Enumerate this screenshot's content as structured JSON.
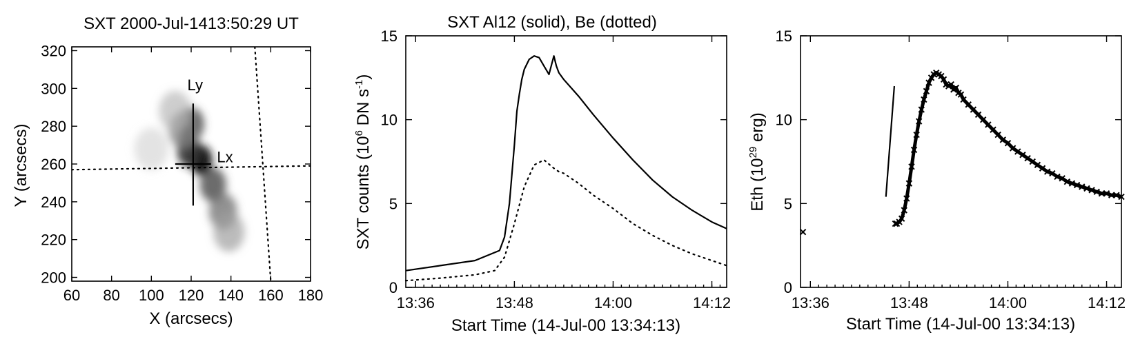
{
  "chart_data": [
    {
      "type": "heatmap",
      "title": "SXT 2000-Jul-1413:50:29 UT",
      "xlabel": "X (arcsecs)",
      "ylabel": "Y (arcsecs)",
      "xlim": [
        60,
        180
      ],
      "ylim": [
        198,
        322
      ],
      "xticks": [
        "60",
        "80",
        "100",
        "120",
        "140",
        "160",
        "180"
      ],
      "yticks": [
        "200",
        "220",
        "240",
        "260",
        "280",
        "300",
        "320"
      ],
      "grid": false,
      "annotations": [
        {
          "text": "Ly",
          "x": 122,
          "y": 299
        },
        {
          "text": "Lx",
          "x": 137,
          "y": 261
        }
      ],
      "cuts": {
        "Lx_horizontal": {
          "x": [
            60,
            180
          ],
          "y": [
            257,
            259
          ]
        },
        "Ly_vertical": {
          "x": [
            121,
            121
          ],
          "y": [
            238,
            292
          ]
        },
        "center_cross": {
          "x": [
            112,
            130
          ],
          "y": [
            260,
            260
          ]
        },
        "dotted_diagonal": {
          "x": [
            152,
            160
          ],
          "y": [
            322,
            198
          ]
        }
      },
      "emission_blobs": [
        {
          "x": 125,
          "y": 262,
          "intensity": 1.0
        },
        {
          "x": 119,
          "y": 267,
          "intensity": 0.85
        },
        {
          "x": 120,
          "y": 281,
          "intensity": 0.75
        },
        {
          "x": 131,
          "y": 249,
          "intensity": 0.7
        },
        {
          "x": 136,
          "y": 235,
          "intensity": 0.55
        },
        {
          "x": 139,
          "y": 224,
          "intensity": 0.35
        },
        {
          "x": 116,
          "y": 278,
          "intensity": 0.5
        },
        {
          "x": 112,
          "y": 288,
          "intensity": 0.25
        },
        {
          "x": 100,
          "y": 268,
          "intensity": 0.12
        }
      ]
    },
    {
      "type": "line",
      "title": "SXT Al12 (solid), Be (dotted)",
      "xlabel": "Start Time (14-Jul-00 13:34:13)",
      "ylabel": "SXT counts (10^6 DN s^-1)",
      "ylabel_parts": [
        "SXT counts (10",
        "6",
        " DN s",
        "-1",
        ")"
      ],
      "xlim": [
        13.58,
        14.23
      ],
      "ylim": [
        0,
        15
      ],
      "xticks": [
        {
          "value": 13.6,
          "label": "13:36"
        },
        {
          "value": 13.8,
          "label": "13:48"
        },
        {
          "value": 14.0,
          "label": "14:00"
        },
        {
          "value": 14.2,
          "label": "14:12"
        }
      ],
      "yticks": [
        "0",
        "5",
        "10",
        "15"
      ],
      "grid": false,
      "series": [
        {
          "style": "solid",
          "x": [
            13.58,
            13.65,
            13.72,
            13.77,
            13.78,
            13.79,
            13.8,
            13.805,
            13.81,
            13.815,
            13.82,
            13.83,
            13.84,
            13.85,
            13.86,
            13.87,
            13.88,
            13.885,
            13.89,
            13.895,
            13.9,
            13.93,
            13.96,
            14.0,
            14.04,
            14.08,
            14.12,
            14.16,
            14.2,
            14.23
          ],
          "values": [
            1.0,
            1.3,
            1.6,
            2.2,
            3.0,
            5.0,
            8.5,
            10.5,
            11.5,
            12.4,
            13.0,
            13.6,
            13.8,
            13.7,
            13.2,
            12.7,
            13.8,
            13.2,
            12.8,
            12.6,
            12.4,
            11.4,
            10.3,
            8.9,
            7.6,
            6.4,
            5.4,
            4.6,
            3.9,
            3.5
          ]
        },
        {
          "style": "dotted",
          "x": [
            13.58,
            13.65,
            13.72,
            13.76,
            13.78,
            13.8,
            13.82,
            13.84,
            13.86,
            13.88,
            13.89,
            13.9,
            13.93,
            13.96,
            14.0,
            14.04,
            14.08,
            14.12,
            14.16,
            14.2,
            14.23
          ],
          "values": [
            0.4,
            0.55,
            0.75,
            1.0,
            1.8,
            3.8,
            6.0,
            7.3,
            7.6,
            7.1,
            6.9,
            6.8,
            6.2,
            5.5,
            4.7,
            3.8,
            3.1,
            2.5,
            2.0,
            1.6,
            1.3
          ]
        }
      ]
    },
    {
      "type": "scatter",
      "title": "",
      "xlabel": "Start Time (14-Jul-00 13:34:13)",
      "ylabel": "Eth (10^29 erg)",
      "ylabel_parts": [
        "Eth (10",
        "29",
        " erg)"
      ],
      "xlim": [
        13.58,
        14.23
      ],
      "ylim": [
        0,
        15
      ],
      "xticks": [
        {
          "value": 13.6,
          "label": "13:36"
        },
        {
          "value": 13.8,
          "label": "13:48"
        },
        {
          "value": 14.0,
          "label": "14:00"
        },
        {
          "value": 14.2,
          "label": "14:12"
        }
      ],
      "yticks": [
        "0",
        "5",
        "10",
        "15"
      ],
      "grid": false,
      "reference_line": {
        "x": [
          13.753,
          13.77
        ],
        "y": [
          5.4,
          12.0
        ]
      },
      "series": [
        {
          "style": "marker",
          "x": [
            13.585,
            13.772,
            13.775,
            13.78,
            13.785,
            13.79,
            13.795,
            13.8,
            13.805,
            13.81,
            13.815,
            13.82,
            13.825,
            13.83,
            13.835,
            13.84,
            13.845,
            13.85,
            13.855,
            13.86,
            13.865,
            13.87,
            13.875,
            13.88,
            13.885,
            13.89,
            13.895,
            13.9,
            13.905,
            13.91,
            13.92,
            13.93,
            13.94,
            13.95,
            13.96,
            13.97,
            13.98,
            13.99,
            14.0,
            14.01,
            14.02,
            14.03,
            14.04,
            14.05,
            14.06,
            14.07,
            14.08,
            14.09,
            14.1,
            14.11,
            14.12,
            14.13,
            14.14,
            14.15,
            14.16,
            14.17,
            14.18,
            14.19,
            14.2,
            14.21,
            14.22,
            14.23
          ],
          "values": [
            3.3,
            3.8,
            3.8,
            3.9,
            4.1,
            4.6,
            5.3,
            6.2,
            7.2,
            8.2,
            9.1,
            9.9,
            10.6,
            11.2,
            11.7,
            12.2,
            12.5,
            12.7,
            12.8,
            12.7,
            12.6,
            12.4,
            12.1,
            12.0,
            12.1,
            11.8,
            11.9,
            11.6,
            11.5,
            11.2,
            10.9,
            10.6,
            10.3,
            10.0,
            9.7,
            9.4,
            9.1,
            8.8,
            8.6,
            8.3,
            8.1,
            7.9,
            7.7,
            7.5,
            7.3,
            7.1,
            6.9,
            6.8,
            6.6,
            6.5,
            6.3,
            6.2,
            6.1,
            6.0,
            5.9,
            5.8,
            5.7,
            5.6,
            5.6,
            5.5,
            5.5,
            5.4
          ]
        }
      ]
    }
  ]
}
